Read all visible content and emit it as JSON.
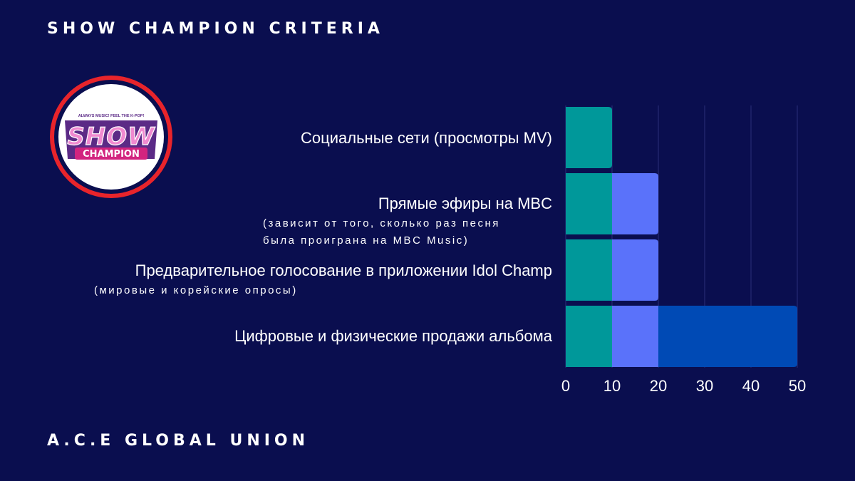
{
  "title": "SHOW CHAMPION CRITERIA",
  "footer": "A.C.E GLOBAL UNION",
  "logo": {
    "top_text": "ALWAYS MUSIC! FEEL THE K-POP!",
    "word1": "SHOW",
    "word2": "CHAMPION",
    "ring_color": "#e8242b"
  },
  "chart_data": {
    "type": "bar",
    "orientation": "horizontal",
    "stacked": true,
    "categories": [
      "Социальные сети (просмотры MV)",
      "Прямые эфиры на MBC",
      "Предварительное голосование в приложении Idol Champ",
      "Цифровые и физические продажи альбома"
    ],
    "category_notes": [
      "",
      "(зависит от того, сколько раз песня\nбыла проиграна на MBC Music)",
      "(мировые и корейские опросы)",
      ""
    ],
    "series": [
      {
        "color": "#00989a",
        "values": [
          10,
          10,
          10,
          10
        ]
      },
      {
        "color": "#5a72fa",
        "values": [
          0,
          10,
          10,
          10
        ]
      },
      {
        "color": "#004ab5",
        "values": [
          0,
          0,
          0,
          30
        ]
      }
    ],
    "xlim": [
      0,
      50
    ],
    "xticks": [
      0,
      10,
      20,
      30,
      40,
      50
    ],
    "grid": true
  }
}
